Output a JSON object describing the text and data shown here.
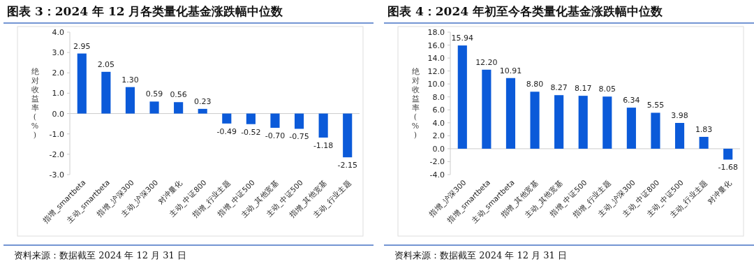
{
  "chart_data": [
    {
      "type": "bar",
      "title": "图表 3：2024 年 12 月各类量化基金涨跌幅中位数",
      "ylabel": "绝对收益率(%)",
      "categories": [
        "指增_smartbeta",
        "主动_smartbeta",
        "指增_沪深300",
        "主动_沪深300",
        "对冲量化",
        "主动_中证800",
        "指增_行业主题",
        "指增_中证500",
        "主动_其他宽基",
        "主动_中证500",
        "指增_其他宽基",
        "主动_行业主题"
      ],
      "values": [
        2.95,
        2.05,
        1.3,
        0.59,
        0.56,
        0.23,
        -0.49,
        -0.52,
        -0.7,
        -0.75,
        -1.18,
        -2.15
      ],
      "value_labels": [
        "2.95",
        "2.05",
        "1.30",
        "0.59",
        "0.56",
        "0.23",
        "-0.49",
        "-0.52",
        "-0.70",
        "-0.75",
        "-1.18",
        "-2.15"
      ],
      "color": "#0b5ad9",
      "ylim": [
        -3,
        4
      ],
      "yticks": [
        {
          "value": -3,
          "label": "-3.0"
        },
        {
          "value": -2,
          "label": "-2.0"
        },
        {
          "value": -1,
          "label": "-1.0"
        },
        {
          "value": 0,
          "label": "0.0"
        },
        {
          "value": 1,
          "label": "1.0"
        },
        {
          "value": 2,
          "label": "2.0"
        },
        {
          "value": 3,
          "label": "3.0"
        },
        {
          "value": 4,
          "label": "4.0"
        }
      ],
      "annotations": [
        "资料来源：数据截至 2024 年 12 月 31 日"
      ]
    },
    {
      "type": "bar",
      "title": "图表 4：2024 年初至今各类量化基金涨跌幅中位数",
      "ylabel": "绝对收益率(%)",
      "categories": [
        "指增_沪深300",
        "指增_smartbeta",
        "主动_smartbeta",
        "指增_其他宽基",
        "主动_其他宽基",
        "指增_中证500",
        "指增_行业主题",
        "主动_沪深300",
        "主动_中证800",
        "主动_中证500",
        "主动_行业主题",
        "对冲量化"
      ],
      "values": [
        15.94,
        12.2,
        10.91,
        8.8,
        8.27,
        8.17,
        8.05,
        6.34,
        5.55,
        3.98,
        1.83,
        -1.68
      ],
      "value_labels": [
        "15.94",
        "12.20",
        "10.91",
        "8.80",
        "8.27",
        "8.17",
        "8.05",
        "6.34",
        "5.55",
        "3.98",
        "1.83",
        "-1.68"
      ],
      "color": "#0b5ad9",
      "ylim": [
        -4,
        18
      ],
      "yticks": [
        {
          "value": -4,
          "label": "-4.0"
        },
        {
          "value": -2,
          "label": "-2.0"
        },
        {
          "value": 0,
          "label": "0.0"
        },
        {
          "value": 2,
          "label": "2.0"
        },
        {
          "value": 4,
          "label": "4.0"
        },
        {
          "value": 6,
          "label": "6.0"
        },
        {
          "value": 8,
          "label": "8.0"
        },
        {
          "value": 10,
          "label": "10.0"
        },
        {
          "value": 12,
          "label": "12.0"
        },
        {
          "value": 14,
          "label": "14.0"
        },
        {
          "value": 16,
          "label": "16.0"
        },
        {
          "value": 18,
          "label": "18.0"
        }
      ],
      "annotations": [
        "资料来源：数据截至 2024 年 12 月 31 日"
      ]
    }
  ]
}
